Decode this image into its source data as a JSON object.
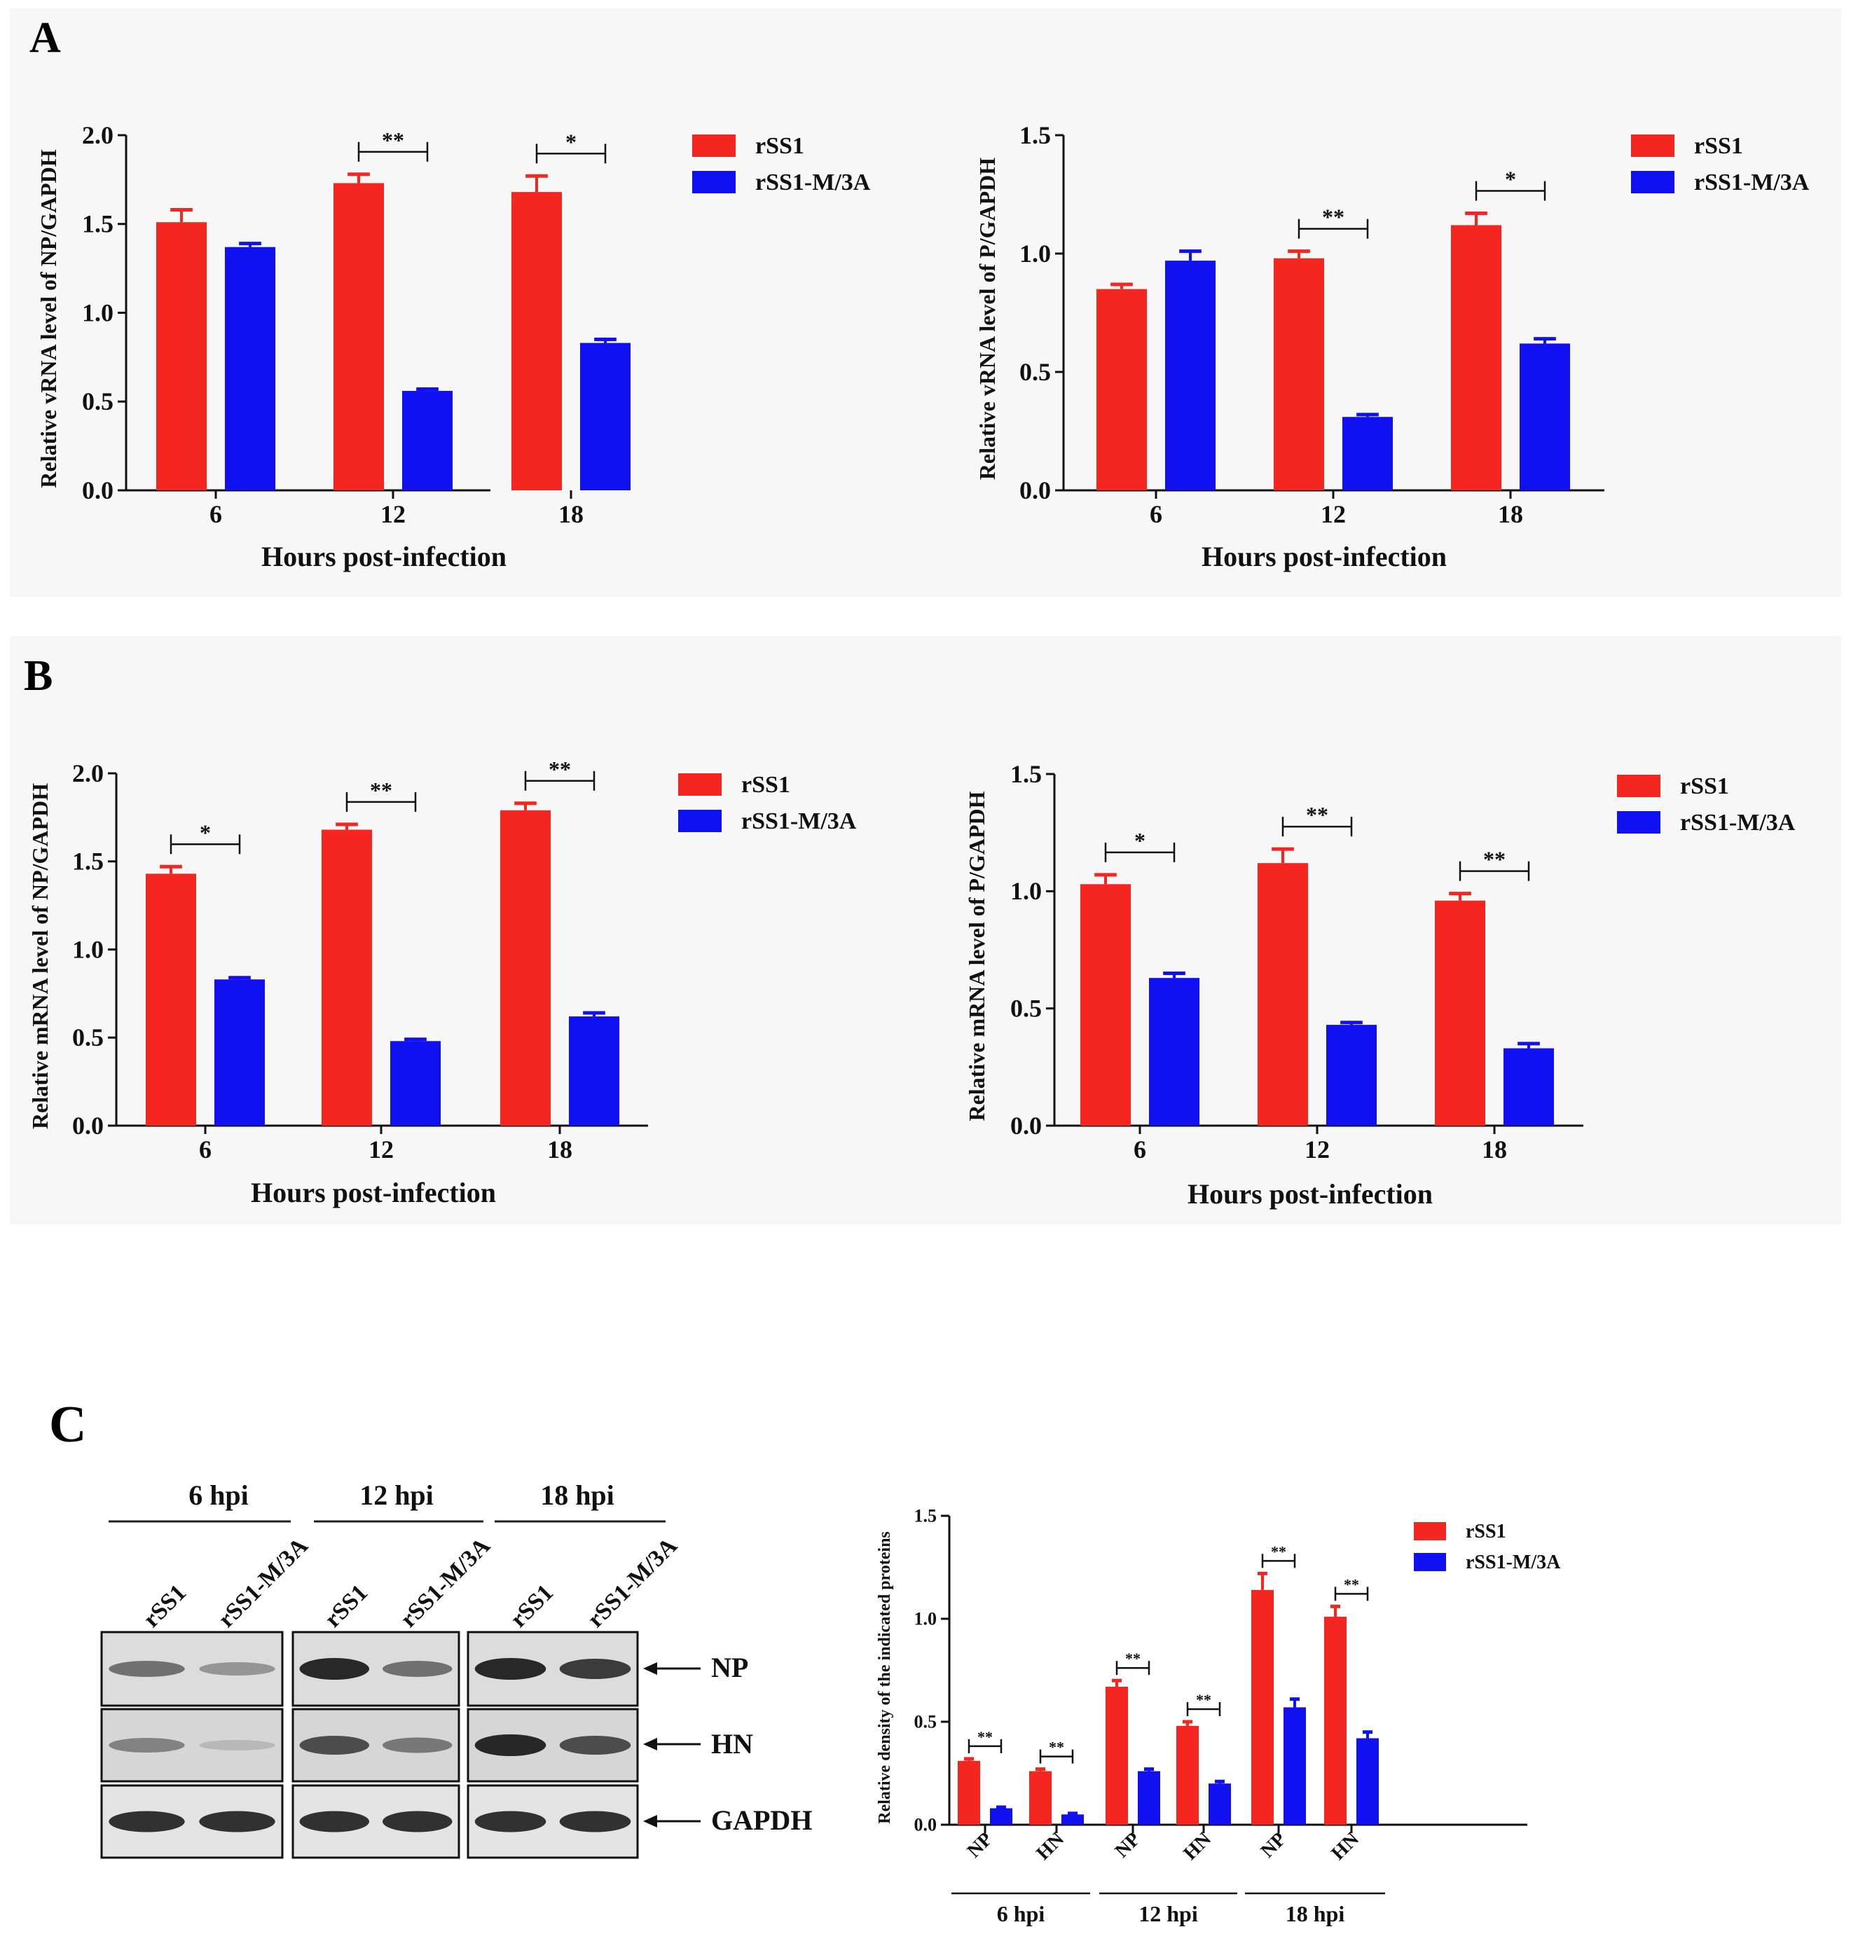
{
  "panels": {
    "A": "A",
    "B": "B",
    "C": "C"
  },
  "colors": {
    "series1": "#f5261f",
    "series2": "#1010f0",
    "panel_bg": "#f7f7f7"
  },
  "legend": {
    "series1": "rSS1",
    "series2": "rSS1-M/3A"
  },
  "chart_data": [
    {
      "id": "A-left",
      "panel": "A",
      "type": "bar",
      "ylabel": "Relative vRNA level of NP/GAPDH",
      "xlabel": "Hours post-infection",
      "categories": [
        "6",
        "12",
        "18"
      ],
      "ylim": [
        0,
        2.0
      ],
      "yticks": [
        "0.0",
        "0.5",
        "1.0",
        "1.5",
        "2.0"
      ],
      "legend_position": "right",
      "series": [
        {
          "name": "rSS1",
          "values": [
            1.51,
            1.73,
            1.68
          ],
          "errors": [
            0.07,
            0.05,
            0.09
          ]
        },
        {
          "name": "rSS1-M/3A",
          "values": [
            1.37,
            0.56,
            0.83
          ],
          "errors": [
            0.02,
            0.01,
            0.02
          ]
        }
      ],
      "significance": [
        {
          "category": 1,
          "label": "**"
        },
        {
          "category": 2,
          "label": "*"
        }
      ]
    },
    {
      "id": "A-right",
      "panel": "A",
      "type": "bar",
      "ylabel": "Relative vRNA level of P/GAPDH",
      "xlabel": "Hours post-infection",
      "categories": [
        "6",
        "12",
        "18"
      ],
      "ylim": [
        0,
        1.5
      ],
      "yticks": [
        "0.0",
        "0.5",
        "1.0",
        "1.5"
      ],
      "legend_position": "right",
      "series": [
        {
          "name": "rSS1",
          "values": [
            0.85,
            0.98,
            1.12
          ],
          "errors": [
            0.02,
            0.03,
            0.05
          ]
        },
        {
          "name": "rSS1-M/3A",
          "values": [
            0.97,
            0.31,
            0.62
          ],
          "errors": [
            0.04,
            0.01,
            0.02
          ]
        }
      ],
      "significance": [
        {
          "category": 1,
          "label": "**"
        },
        {
          "category": 2,
          "label": "*"
        }
      ]
    },
    {
      "id": "B-left",
      "panel": "B",
      "type": "bar",
      "ylabel": "Relative mRNA level of NP/GAPDH",
      "xlabel": "Hours post-infection",
      "categories": [
        "6",
        "12",
        "18"
      ],
      "ylim": [
        0,
        2.0
      ],
      "yticks": [
        "0.0",
        "0.5",
        "1.0",
        "1.5",
        "2.0"
      ],
      "legend_position": "right",
      "series": [
        {
          "name": "rSS1",
          "values": [
            1.43,
            1.68,
            1.79
          ],
          "errors": [
            0.04,
            0.03,
            0.04
          ]
        },
        {
          "name": "rSS1-M/3A",
          "values": [
            0.83,
            0.48,
            0.62
          ],
          "errors": [
            0.01,
            0.01,
            0.02
          ]
        }
      ],
      "significance": [
        {
          "category": 0,
          "label": "*"
        },
        {
          "category": 1,
          "label": "**"
        },
        {
          "category": 2,
          "label": "**"
        }
      ]
    },
    {
      "id": "B-right",
      "panel": "B",
      "type": "bar",
      "ylabel": "Relative mRNA level of P/GAPDH",
      "xlabel": "Hours post-infection",
      "categories": [
        "6",
        "12",
        "18"
      ],
      "ylim": [
        0,
        1.5
      ],
      "yticks": [
        "0.0",
        "0.5",
        "1.0",
        "1.5"
      ],
      "legend_position": "right",
      "series": [
        {
          "name": "rSS1",
          "values": [
            1.03,
            1.12,
            0.96
          ],
          "errors": [
            0.04,
            0.06,
            0.03
          ]
        },
        {
          "name": "rSS1-M/3A",
          "values": [
            0.63,
            0.43,
            0.33
          ],
          "errors": [
            0.02,
            0.01,
            0.02
          ]
        }
      ],
      "significance": [
        {
          "category": 0,
          "label": "*"
        },
        {
          "category": 1,
          "label": "**"
        },
        {
          "category": 2,
          "label": "**"
        }
      ]
    },
    {
      "id": "C-chart",
      "panel": "C",
      "type": "bar",
      "ylabel": "Relative density of the indicated proteins",
      "xlabel": "",
      "categories": [
        "NP",
        "HN",
        "NP",
        "HN",
        "NP",
        "HN"
      ],
      "groups": [
        "6 hpi",
        "12 hpi",
        "18 hpi"
      ],
      "ylim": [
        0,
        1.5
      ],
      "yticks": [
        "0.0",
        "0.5",
        "1.0",
        "1.5"
      ],
      "legend_position": "top-right",
      "series": [
        {
          "name": "rSS1",
          "values": [
            0.31,
            0.26,
            0.67,
            0.48,
            1.14,
            1.01
          ],
          "errors": [
            0.01,
            0.01,
            0.03,
            0.02,
            0.08,
            0.05
          ]
        },
        {
          "name": "rSS1-M/3A",
          "values": [
            0.08,
            0.05,
            0.26,
            0.2,
            0.57,
            0.42
          ],
          "errors": [
            0.005,
            0.005,
            0.01,
            0.01,
            0.04,
            0.03
          ]
        }
      ],
      "significance": [
        {
          "category": 0,
          "label": "**"
        },
        {
          "category": 1,
          "label": "**"
        },
        {
          "category": 2,
          "label": "**"
        },
        {
          "category": 3,
          "label": "**"
        },
        {
          "category": 4,
          "label": "**"
        },
        {
          "category": 5,
          "label": "**"
        }
      ]
    }
  ],
  "western_blot": {
    "timepoints": [
      "6 hpi",
      "12 hpi",
      "18 hpi"
    ],
    "lanes": [
      "rSS1",
      "rSS1-M/3A"
    ],
    "rows": [
      "NP",
      "HN",
      "GAPDH"
    ]
  }
}
